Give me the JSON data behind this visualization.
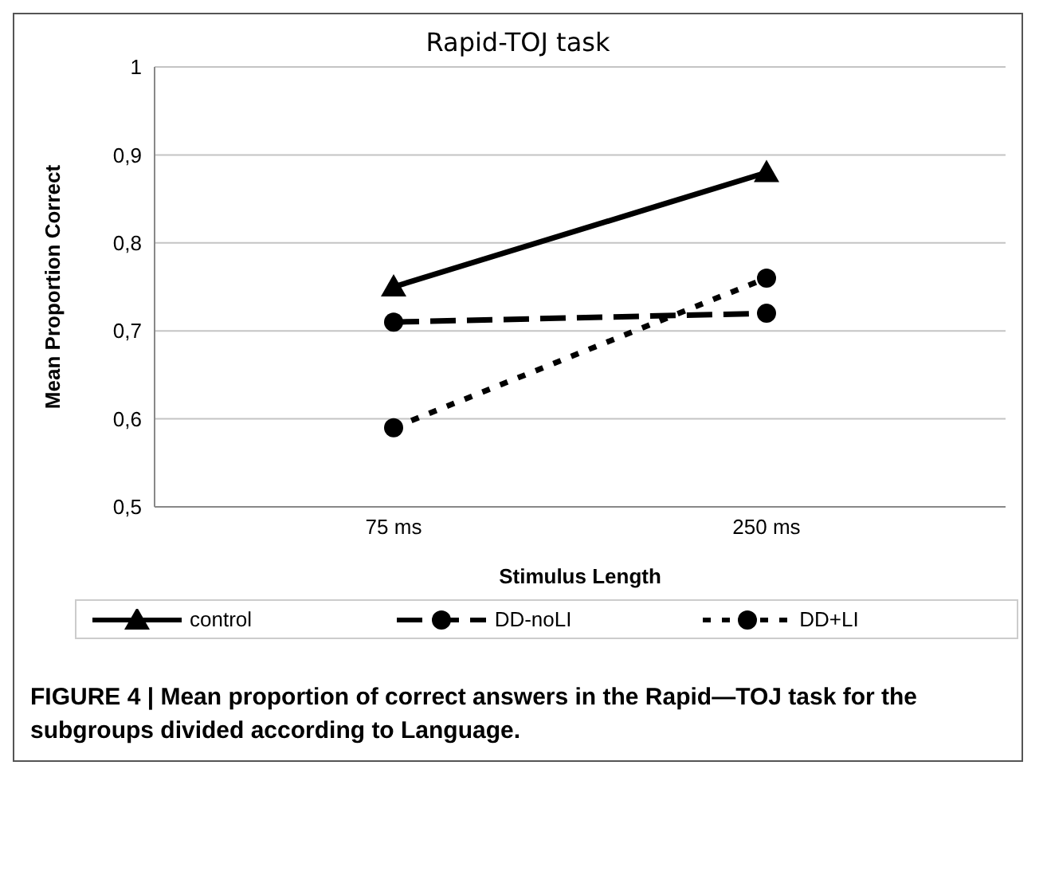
{
  "chart_data": {
    "type": "line",
    "title": "Rapid-TOJ task",
    "xlabel": "Stimulus Length",
    "ylabel": "Mean Proportion Correct",
    "categories": [
      "75 ms",
      "250 ms"
    ],
    "series": [
      {
        "name": "control",
        "color": "#000000",
        "values": [
          0.75,
          0.88
        ],
        "marker": "triangle",
        "line_style": "solid"
      },
      {
        "name": "DD-noLI",
        "color": "#000000",
        "values": [
          0.71,
          0.72
        ],
        "marker": "circle",
        "line_style": "dashed"
      },
      {
        "name": "DD+LI",
        "color": "#000000",
        "values": [
          0.59,
          0.76
        ],
        "marker": "circle",
        "line_style": "dotted"
      }
    ],
    "ylim": [
      0.5,
      1
    ],
    "yticks": [
      {
        "value": 0.5,
        "label": "0,5"
      },
      {
        "value": 0.6,
        "label": "0,6"
      },
      {
        "value": 0.7,
        "label": "0,7"
      },
      {
        "value": 0.8,
        "label": "0,8"
      },
      {
        "value": 0.9,
        "label": "0,9"
      },
      1
    ],
    "grid": "y",
    "legend": "bottom",
    "annotations": [
      "FIGURE 4 | Mean proportion of correct answers in the Rapid—TOJ task for the subgroups divided according to Language."
    ]
  }
}
